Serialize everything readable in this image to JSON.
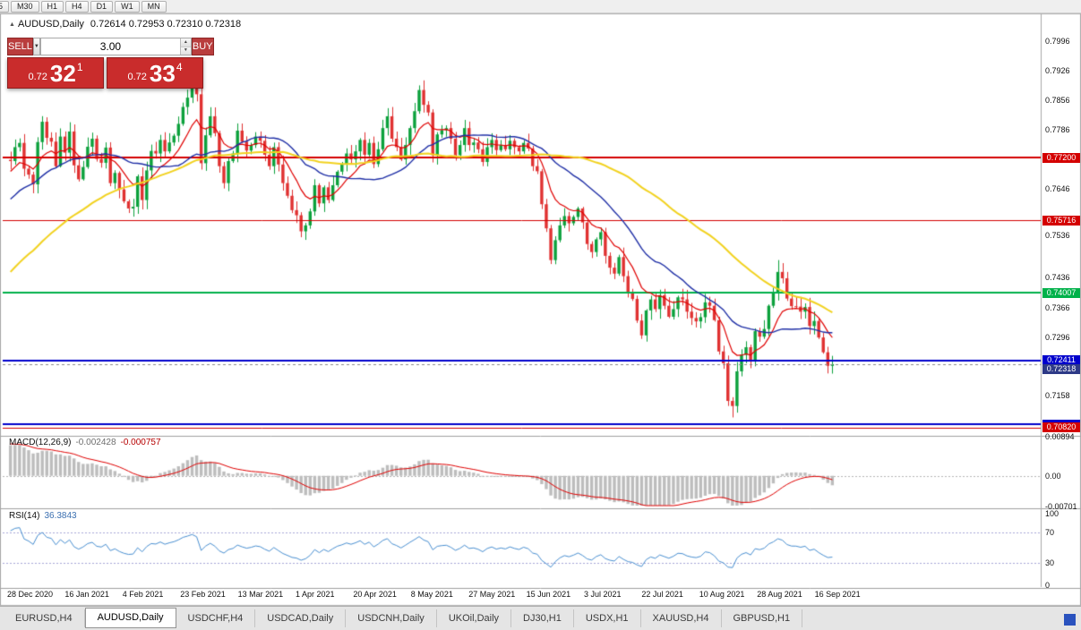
{
  "toolbar": {
    "timeframes": [
      "5",
      "M30",
      "H1",
      "H4",
      "D1",
      "W1",
      "MN"
    ]
  },
  "title": {
    "symbol": "AUDUSD,Daily",
    "ohlc": "0.72614 0.72953 0.72310 0.72318"
  },
  "icons": {
    "dropdown_caret": "▼",
    "spin_up": "▲",
    "spin_down": "▼",
    "panel_toggle": "▲"
  },
  "trade": {
    "sell_label": "SELL",
    "buy_label": "BUY",
    "volume": "3.00",
    "sell_small": "0.72",
    "sell_big": "32",
    "sell_sup": "1",
    "buy_small": "0.72",
    "buy_big": "33",
    "buy_sup": "4"
  },
  "colors": {
    "level_red": "#d40000",
    "level_green": "#00b14a",
    "level_blue": "#0000cc",
    "current_label": "#2e3a87",
    "button_red": "#b93d3d",
    "price_red": "#c92c2c",
    "macd_hist": "#bdbdbd",
    "macd_signal": "#e00000",
    "rsi_line": "#4a90d2"
  },
  "axis": {
    "ticks": [
      "0.7996",
      "0.7926",
      "0.7856",
      "0.7786",
      "0.7646",
      "0.7536",
      "0.7436",
      "0.7366",
      "0.7296",
      "0.7158"
    ]
  },
  "levels": [
    {
      "label": "0.77200",
      "price": 0.772,
      "color": "#d40000",
      "lw": 2,
      "show_label": true
    },
    {
      "label": "0.75716",
      "price": 0.75716,
      "color": "#d40000",
      "lw": 1,
      "show_label": true
    },
    {
      "label": "0.74007",
      "price": 0.74007,
      "color": "#00b14a",
      "lw": 2,
      "show_label": true
    },
    {
      "label": "0.72411",
      "price": 0.72411,
      "color": "#0000cc",
      "lw": 2,
      "show_label": true
    },
    {
      "label": "",
      "price": 0.70895,
      "color": "#0000cc",
      "lw": 2,
      "show_label": false
    },
    {
      "label": "0.70820",
      "price": 0.7082,
      "color": "#d40000",
      "lw": 1,
      "show_label": true
    }
  ],
  "current_price": {
    "label": "0.72318",
    "price": 0.72318,
    "color": "#2e3a87"
  },
  "macd": {
    "name": "MACD(12,26,9)",
    "main_value": "-0.002428",
    "signal_value": "-0.000757",
    "scale_labels": [
      {
        "text": "0.00894",
        "v": 0.00894
      },
      {
        "text": "0.00",
        "v": 0
      },
      {
        "text": "-0.00701",
        "v": -0.00701
      }
    ],
    "axis_max": 0.00894,
    "axis_min": -0.00701
  },
  "rsi": {
    "name": "RSI(14)",
    "value": "36.3843",
    "scale_labels": [
      {
        "text": "100",
        "v": 100
      },
      {
        "text": "70",
        "v": 70
      },
      {
        "text": "30",
        "v": 30
      },
      {
        "text": "0",
        "v": 0
      }
    ],
    "level_lines": [
      70,
      30
    ]
  },
  "tabs": {
    "items": [
      "EURUSD,H4",
      "AUDUSD,Daily",
      "USDCHF,H4",
      "USDCAD,Daily",
      "USDCNH,Daily",
      "UKOil,Daily",
      "DJ30,H1",
      "USDX,H1",
      "XAUUSD,H4",
      "GBPUSD,H1"
    ],
    "active_index": 1
  },
  "chart_data": {
    "type": "candlestick",
    "symbol": "AUDUSD",
    "timeframe": "Daily",
    "x_tick_labels": [
      "28 Dec 2020",
      "16 Jan 2021",
      "4 Feb 2021",
      "23 Feb 2021",
      "13 Mar 2021",
      "1 Apr 2021",
      "20 Apr 2021",
      "8 May 2021",
      "27 May 2021",
      "15 Jun 2021",
      "3 Jul 2021",
      "22 Jul 2021",
      "10 Aug 2021",
      "28 Aug 2021",
      "16 Sep 2021"
    ],
    "price_axis": {
      "pmax": 0.8004,
      "pmin": 0.7071
    },
    "up_color": "#0ca13c",
    "down_color": "#e03131",
    "moving_averages": [
      {
        "name": "fast",
        "type": "ema",
        "period": 10,
        "color": "#e00000",
        "lw": 1.2
      },
      {
        "name": "medium",
        "type": "sma",
        "period": 24,
        "color": "#1f2fa6",
        "lw": 1.4
      },
      {
        "name": "slow",
        "type": "sma",
        "period": 55,
        "color": "#f2d21f",
        "lw": 2
      }
    ],
    "prehistory_closes": [
      0.703,
      0.706,
      0.7045,
      0.708,
      0.711,
      0.709,
      0.7125,
      0.715,
      0.713,
      0.716,
      0.7185,
      0.717,
      0.72,
      0.723,
      0.7215,
      0.7245,
      0.727,
      0.7255,
      0.7285,
      0.731,
      0.7295,
      0.732,
      0.7345,
      0.733,
      0.736,
      0.7385,
      0.737,
      0.74,
      0.742,
      0.7405,
      0.743,
      0.7455,
      0.744,
      0.7465,
      0.749,
      0.7475,
      0.75,
      0.752,
      0.7505,
      0.753,
      0.755,
      0.7535,
      0.756,
      0.758,
      0.7565,
      0.759,
      0.761,
      0.7595,
      0.762,
      0.764,
      0.7625,
      0.765,
      0.767,
      0.7655,
      0.768,
      0.77,
      0.7685,
      0.771,
      0.773,
      0.7715
    ],
    "closes": [
      0.7712,
      0.7745,
      0.7755,
      0.7694,
      0.768,
      0.7657,
      0.7757,
      0.7805,
      0.7767,
      0.7758,
      0.77,
      0.777,
      0.7732,
      0.7782,
      0.7702,
      0.7669,
      0.7698,
      0.7746,
      0.7765,
      0.7717,
      0.7708,
      0.7744,
      0.766,
      0.7684,
      0.7645,
      0.7617,
      0.76,
      0.7604,
      0.7676,
      0.762,
      0.769,
      0.7736,
      0.773,
      0.7762,
      0.7735,
      0.7756,
      0.7772,
      0.78,
      0.784,
      0.7862,
      0.789,
      0.787,
      0.7707,
      0.7773,
      0.7818,
      0.7778,
      0.77,
      0.766,
      0.7712,
      0.773,
      0.7784,
      0.7758,
      0.7737,
      0.775,
      0.777,
      0.776,
      0.7727,
      0.77,
      0.7745,
      0.7704,
      0.766,
      0.763,
      0.7596,
      0.7584,
      0.7546,
      0.756,
      0.7593,
      0.7655,
      0.7612,
      0.765,
      0.762,
      0.7655,
      0.7687,
      0.7705,
      0.773,
      0.7716,
      0.7735,
      0.7762,
      0.7727,
      0.7755,
      0.7705,
      0.774,
      0.779,
      0.7818,
      0.7765,
      0.7745,
      0.7716,
      0.775,
      0.779,
      0.783,
      0.788,
      0.7845,
      0.7827,
      0.7726,
      0.7775,
      0.7785,
      0.779,
      0.7765,
      0.7726,
      0.775,
      0.779,
      0.775,
      0.7756,
      0.774,
      0.771,
      0.7745,
      0.7762,
      0.7738,
      0.775,
      0.774,
      0.776,
      0.7745,
      0.7735,
      0.7755,
      0.7742,
      0.77,
      0.7688,
      0.761,
      0.7553,
      0.7478,
      0.7525,
      0.756,
      0.7582,
      0.7565,
      0.758,
      0.76,
      0.7567,
      0.7516,
      0.7497,
      0.7527,
      0.7544,
      0.7488,
      0.746,
      0.7446,
      0.7485,
      0.744,
      0.74,
      0.7386,
      0.7335,
      0.73,
      0.7359,
      0.7385,
      0.7362,
      0.7395,
      0.737,
      0.7344,
      0.7362,
      0.739,
      0.7385,
      0.7356,
      0.7341,
      0.7333,
      0.7343,
      0.7378,
      0.737,
      0.7336,
      0.7262,
      0.7234,
      0.7145,
      0.7133,
      0.7215,
      0.7254,
      0.7272,
      0.7238,
      0.731,
      0.7297,
      0.7315,
      0.737,
      0.74,
      0.745,
      0.7435,
      0.7387,
      0.7369,
      0.7368,
      0.7356,
      0.7367,
      0.7322,
      0.7334,
      0.7295,
      0.726,
      0.7228,
      0.72318
    ],
    "high_overrides": {
      "40": 0.7891,
      "90": 0.7891,
      "169": 0.7478
    },
    "low_overrides": {
      "42": 0.7692,
      "64": 0.7532,
      "159": 0.7106,
      "180": 0.721
    },
    "indicators": [
      {
        "name": "MACD",
        "params": [
          12,
          26,
          9
        ]
      },
      {
        "name": "RSI",
        "params": [
          14
        ]
      }
    ]
  }
}
